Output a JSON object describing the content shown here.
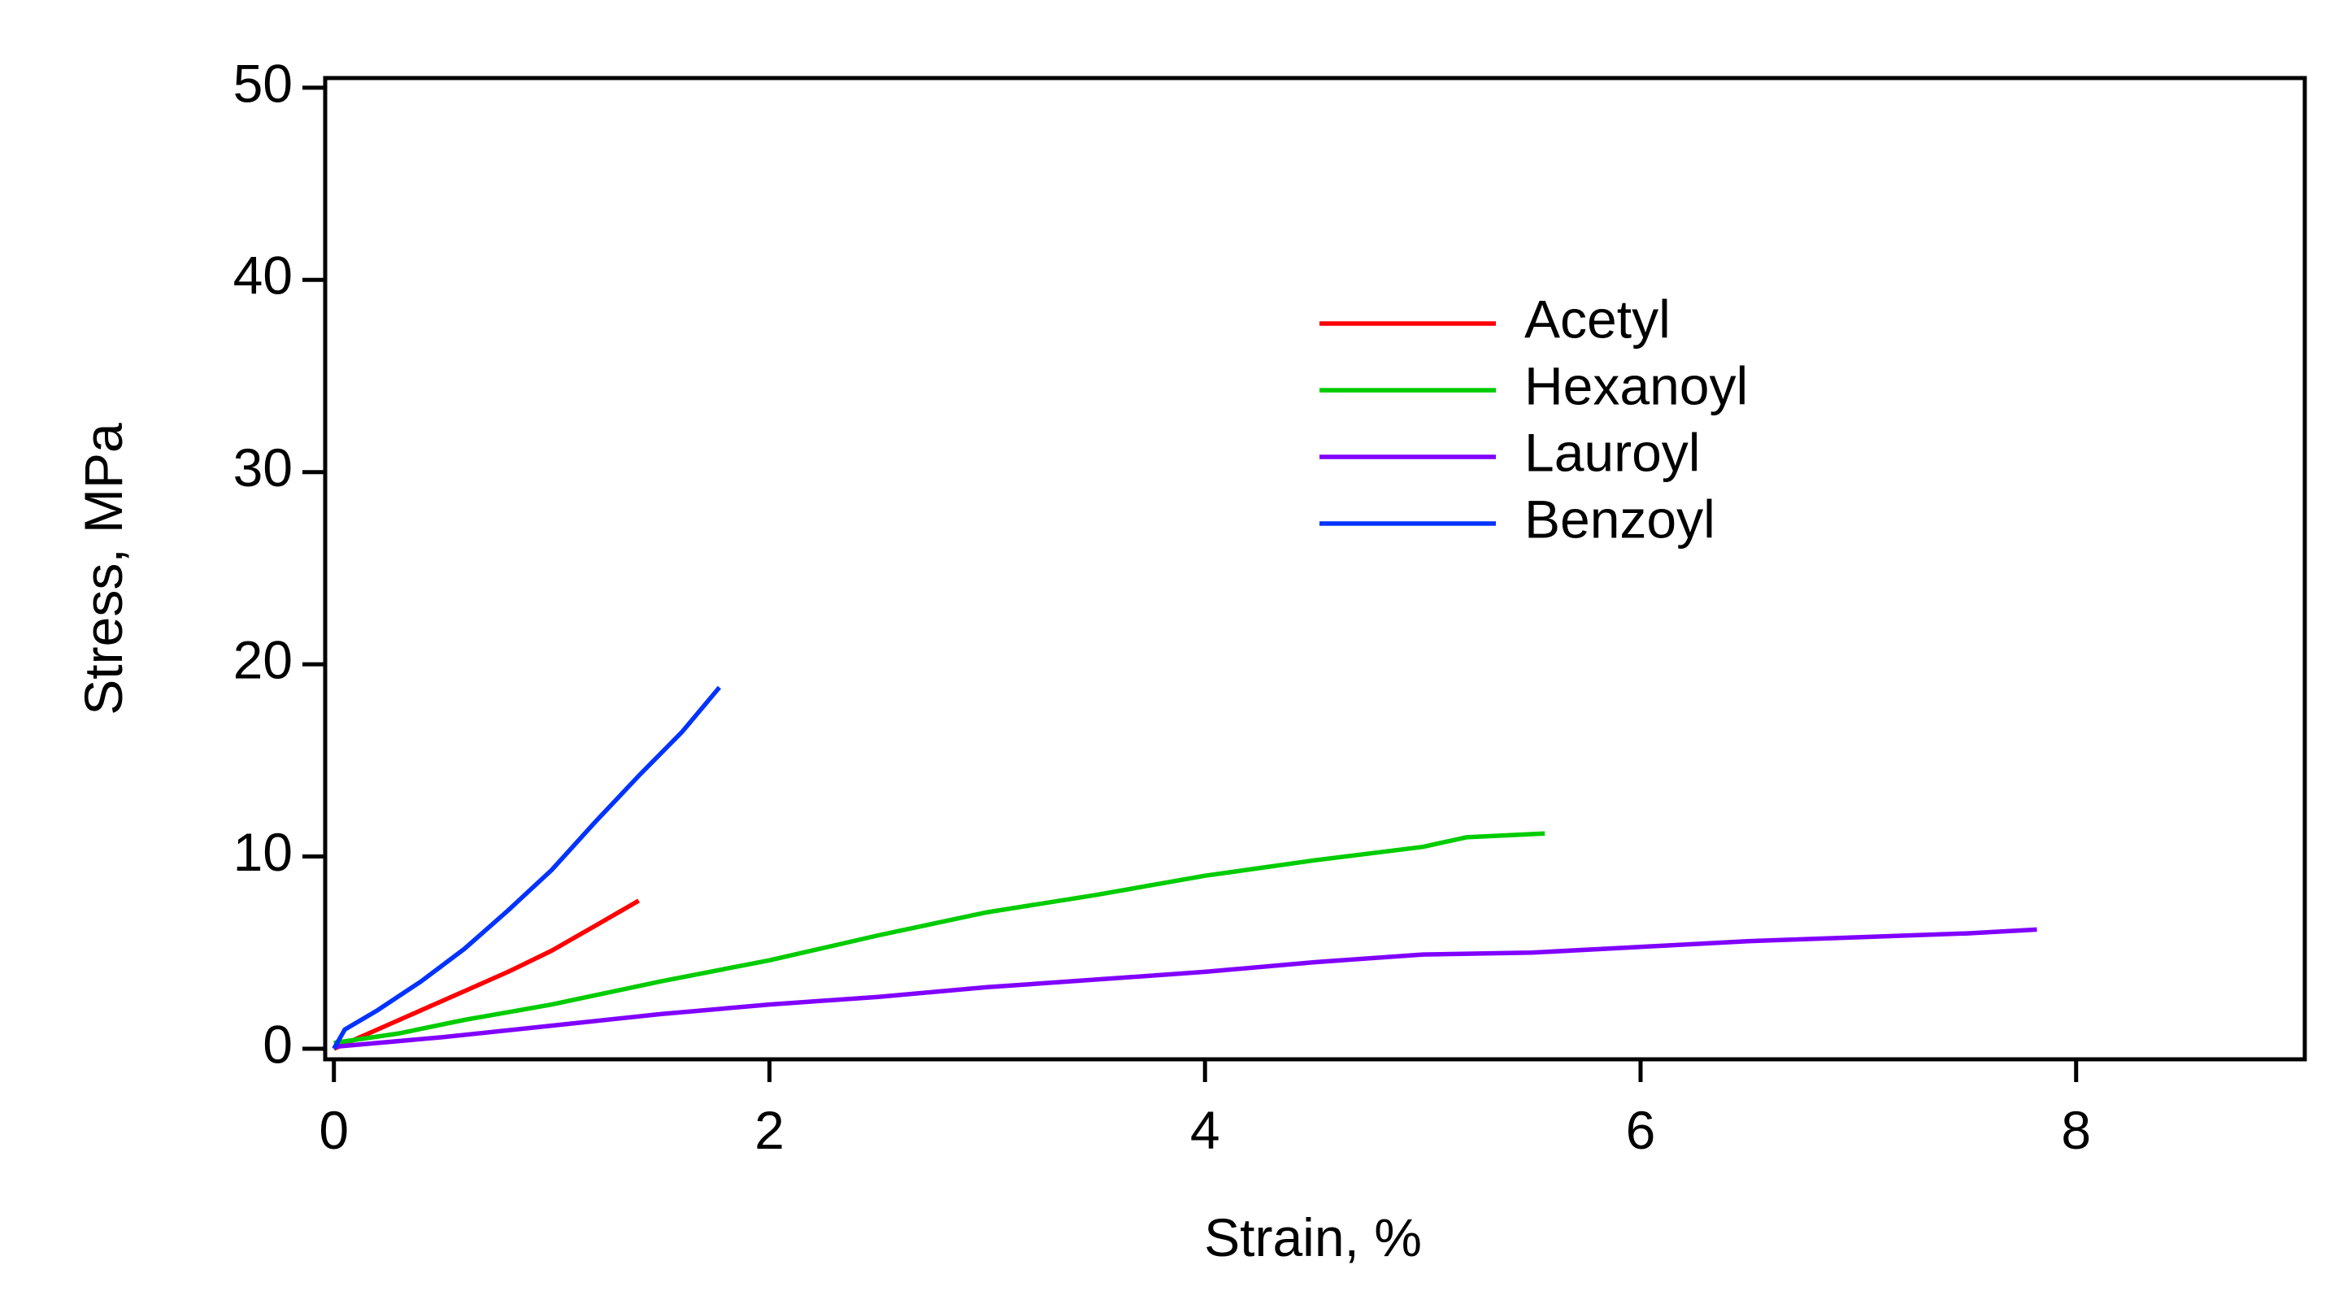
{
  "chart_data": {
    "type": "line",
    "x_label": "Strain, %",
    "y_label": "Stress, MPa",
    "xlim": [
      -0.04,
      9.05
    ],
    "ylim": [
      -0.55,
      50.5
    ],
    "xticks": [
      0,
      2,
      4,
      6,
      8
    ],
    "yticks": [
      0,
      10,
      20,
      30,
      40,
      50
    ],
    "series": [
      {
        "name": "Acetyl",
        "color": "#ff0000",
        "x": [
          0,
          0.2,
          0.4,
          0.6,
          0.8,
          1.0,
          1.2,
          1.4
        ],
        "values": [
          0,
          1.0,
          2.0,
          3.0,
          4.0,
          5.1,
          6.4,
          7.7
        ]
      },
      {
        "name": "Hexanoyl",
        "color": "#00cc00",
        "x": [
          0,
          0.3,
          0.6,
          1.0,
          1.5,
          2.0,
          2.5,
          3.0,
          3.5,
          4.0,
          4.5,
          5.0,
          5.2,
          5.56
        ],
        "values": [
          0.3,
          0.8,
          1.5,
          2.3,
          3.5,
          4.6,
          5.9,
          7.1,
          8.0,
          9.0,
          9.8,
          10.5,
          11.0,
          11.2
        ]
      },
      {
        "name": "Lauroyl",
        "color": "#8000ff",
        "x": [
          0,
          0.5,
          1.0,
          1.5,
          2.0,
          2.5,
          3.0,
          3.5,
          4.0,
          4.5,
          5.0,
          5.5,
          6.0,
          6.5,
          7.0,
          7.5,
          7.82
        ],
        "values": [
          0.1,
          0.6,
          1.2,
          1.8,
          2.3,
          2.7,
          3.2,
          3.6,
          4.0,
          4.5,
          4.9,
          5.0,
          5.3,
          5.6,
          5.8,
          6.0,
          6.2
        ]
      },
      {
        "name": "Benzoyl",
        "color": "#0033ff",
        "x": [
          0,
          0.05,
          0.2,
          0.4,
          0.6,
          0.8,
          1.0,
          1.2,
          1.4,
          1.6,
          1.77
        ],
        "values": [
          0,
          1.0,
          2.0,
          3.5,
          5.2,
          7.2,
          9.3,
          11.8,
          14.2,
          16.5,
          18.8
        ]
      }
    ]
  }
}
